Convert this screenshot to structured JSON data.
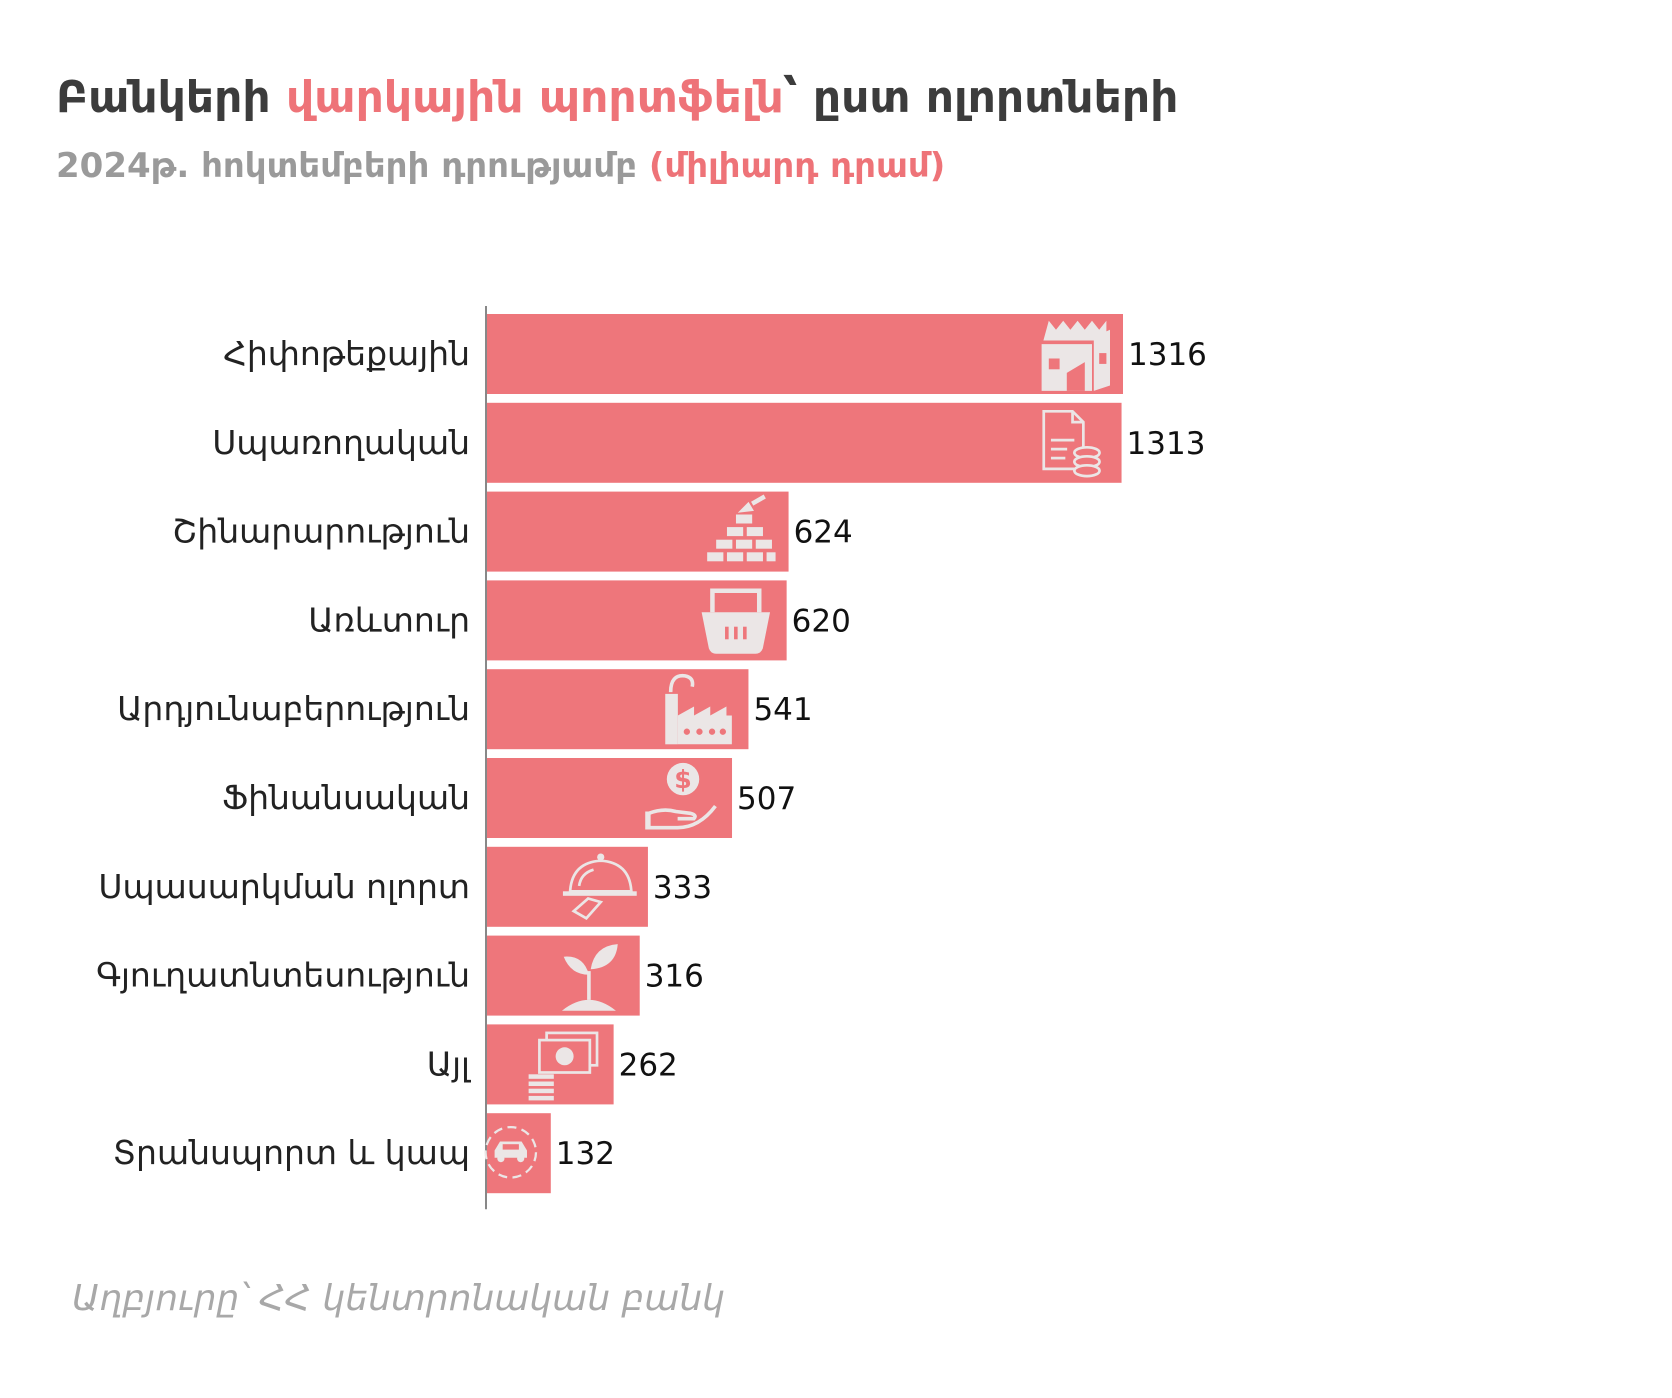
{
  "title": {
    "part1": "Բանկերի ",
    "part2": "վարկային պորտֆելն",
    "part3": "՝ ըստ ոլորտների"
  },
  "subtitle": {
    "part1": "2024թ. հոկտեմբերի դրությամբ ",
    "part2": "(միլիարդ դրամ)"
  },
  "source": "Աղբյուրը՝ ՀՀ կենտրոնական բանկ",
  "colors": {
    "bar": "#ee767b",
    "icon": "#ebe6e6",
    "accent": "#ee7378",
    "axis": "#888888"
  },
  "chart_data": {
    "type": "bar",
    "orientation": "horizontal",
    "categories": [
      "Հիփոթեքային",
      "Սպառողական",
      "Շինարարություն",
      "Առևտուր",
      "Արդյունաբերություն",
      "Ֆինանսական",
      "Սպասարկման ոլորտ",
      "Գյուղատնտեսություն",
      "Այլ",
      "Տրանսպորտ և կապ"
    ],
    "values": [
      1316,
      1313,
      624,
      620,
      541,
      507,
      333,
      316,
      262,
      132
    ],
    "icons": [
      "house-icon",
      "document-coins-icon",
      "bricks-trowel-icon",
      "basket-icon",
      "factory-icon",
      "hand-dollar-icon",
      "cloche-icon",
      "plant-icon",
      "cash-stack-icon",
      "car-icon"
    ],
    "xlim": [
      0,
      1316
    ],
    "grid": false,
    "legend": "none"
  }
}
